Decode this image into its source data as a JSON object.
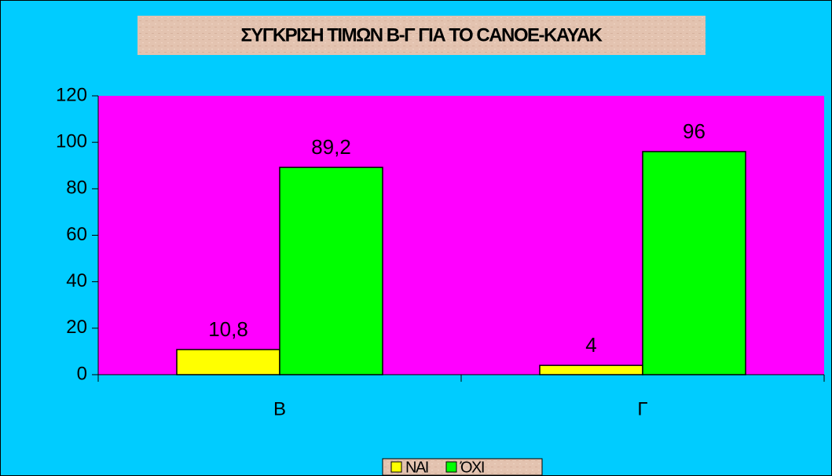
{
  "chart_data": {
    "type": "bar",
    "title": "ΣΥΓΚΡΙΣΗ ΤΙΜΩΝ Β-Γ ΓΙΑ ΤΟ CANOE-KAYAK",
    "categories": [
      "Β",
      "Γ"
    ],
    "series": [
      {
        "name": "ΝΑΙ",
        "color": "#ffff00",
        "values": [
          10.8,
          4
        ],
        "value_labels": [
          "10,8",
          "4"
        ]
      },
      {
        "name": "ΌΧΙ",
        "color": "#00ff00",
        "values": [
          89.2,
          96
        ],
        "value_labels": [
          "89,2",
          "96"
        ]
      }
    ],
    "ylim": [
      0,
      120
    ],
    "yticks": [
      0,
      20,
      40,
      60,
      80,
      100,
      120
    ],
    "grid": false,
    "legend": "bottom",
    "background_color": "#00ccff",
    "plot_color": "#ff00ff"
  }
}
